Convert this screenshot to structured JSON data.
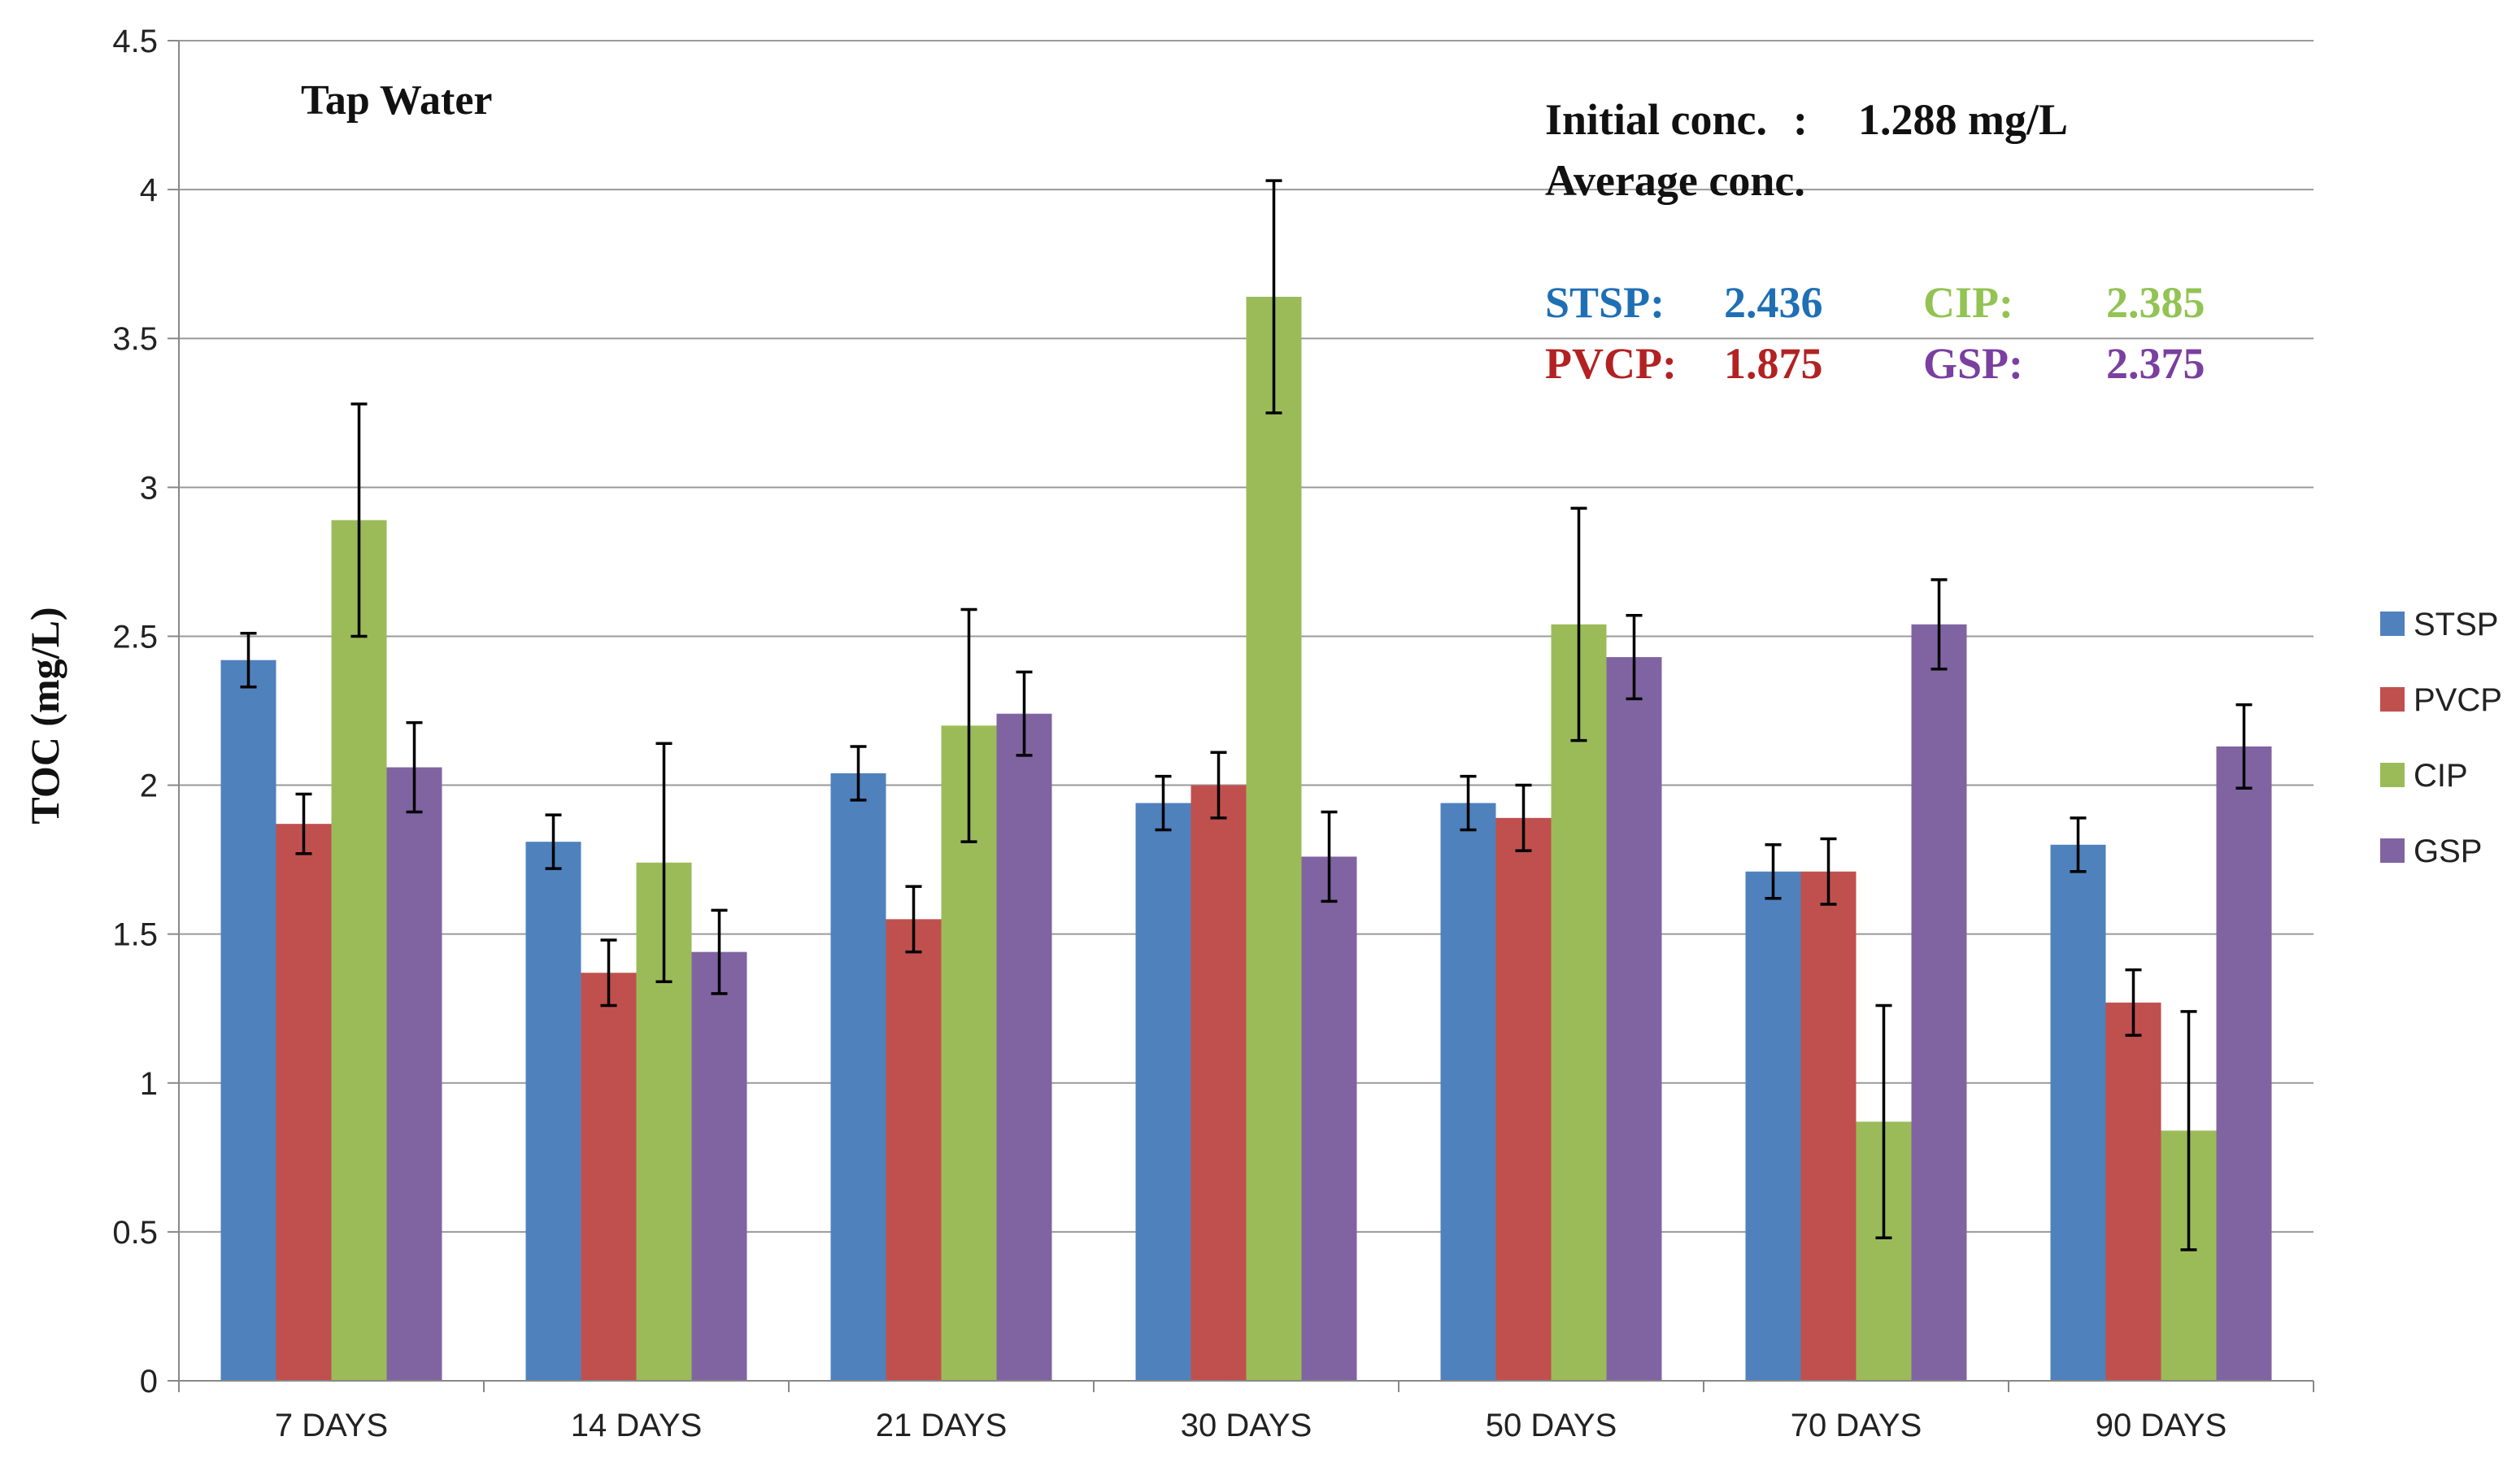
{
  "chart_data": {
    "type": "bar",
    "title": "Tap Water",
    "ylabel": "TOC (mg/L)",
    "xlabel": "",
    "ylim": [
      0,
      4.5
    ],
    "yticks": [
      0,
      0.5,
      1,
      1.5,
      2,
      2.5,
      3,
      3.5,
      4,
      4.5
    ],
    "ytick_labels": [
      "0",
      "0.5",
      "1",
      "1.5",
      "2",
      "2.5",
      "3",
      "3.5",
      "4",
      "4.5"
    ],
    "grid": true,
    "legend_position": "right",
    "categories": [
      "7 DAYS",
      "14 DAYS",
      "21 DAYS",
      "30 DAYS",
      "50 DAYS",
      "70 DAYS",
      "90 DAYS"
    ],
    "series": [
      {
        "name": "STSP",
        "color": "#4f81bd",
        "values": [
          2.42,
          1.81,
          2.04,
          1.94,
          1.94,
          1.71,
          1.8
        ],
        "errors": [
          0.09,
          0.09,
          0.09,
          0.09,
          0.09,
          0.09,
          0.09
        ]
      },
      {
        "name": "PVCP",
        "color": "#c0504d",
        "values": [
          1.87,
          1.37,
          1.55,
          2.0,
          1.89,
          1.71,
          1.27
        ],
        "errors": [
          0.1,
          0.11,
          0.11,
          0.11,
          0.11,
          0.11,
          0.11
        ]
      },
      {
        "name": "CIP",
        "color": "#9bbb59",
        "values": [
          2.89,
          1.74,
          2.2,
          3.64,
          2.54,
          0.87,
          0.84
        ],
        "errors": [
          0.39,
          0.4,
          0.39,
          0.39,
          0.39,
          0.39,
          0.4
        ]
      },
      {
        "name": "GSP",
        "color": "#8064a2",
        "values": [
          2.06,
          1.44,
          2.24,
          1.76,
          2.43,
          2.54,
          2.13
        ],
        "errors": [
          0.15,
          0.14,
          0.14,
          0.15,
          0.14,
          0.15,
          0.14
        ]
      }
    ],
    "annotations": {
      "initial_label": "Initial conc.",
      "initial_sep": ":",
      "initial_value": "1.288 mg/L",
      "average_label": "Average conc.",
      "averages": [
        {
          "name": "STSP:",
          "value": "2.436",
          "color": "#1f6fb5"
        },
        {
          "name": "PVCP:",
          "value": "1.875",
          "color": "#b22222"
        },
        {
          "name": "CIP:",
          "value": "2.385",
          "color": "#92c353"
        },
        {
          "name": "GSP:",
          "value": "2.375",
          "color": "#7a3fa0"
        }
      ]
    }
  }
}
